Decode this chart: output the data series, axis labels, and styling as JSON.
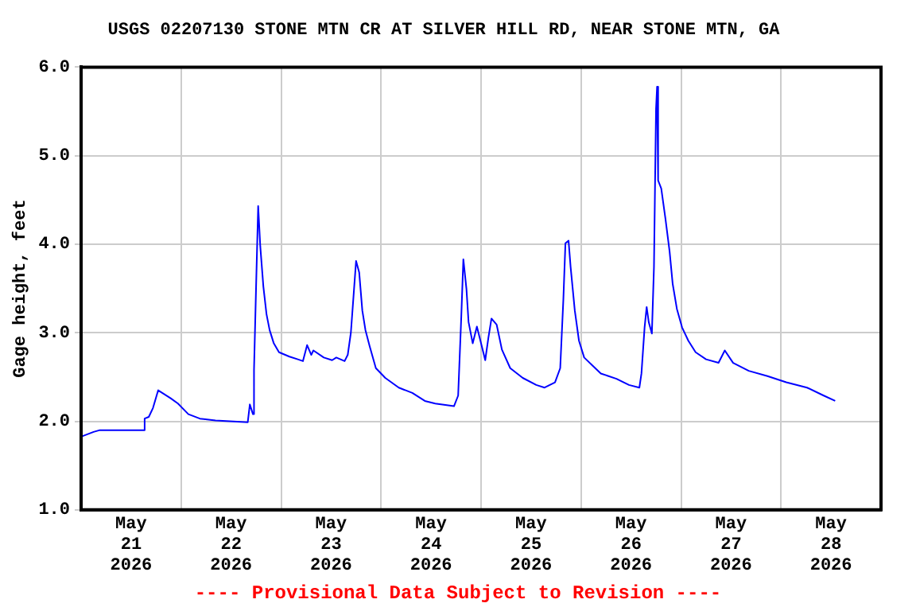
{
  "chart_data": {
    "type": "line",
    "title": "USGS 02207130 STONE MTN CR AT SILVER HILL RD, NEAR STONE MTN, GA",
    "ylabel": "Gage height, feet",
    "annotations": [
      "---- Provisional Data Subject to Revision ----"
    ],
    "x": [
      "2026-05-21T00:15",
      "2026-05-21T03:00",
      "2026-05-21T04:30",
      "2026-05-21T15:00",
      "2026-05-21T15:15",
      "2026-05-21T16:15",
      "2026-05-21T17:15",
      "2026-05-21T18:30",
      "2026-05-21T21:30",
      "2026-05-21T23:15",
      "2026-05-22T01:45",
      "2026-05-22T04:30",
      "2026-05-22T08:15",
      "2026-05-22T16:00",
      "2026-05-22T16:30",
      "2026-05-22T17:15",
      "2026-05-22T17:30",
      "2026-05-22T18:00",
      "2026-05-22T18:30",
      "2026-05-22T19:00",
      "2026-05-22T19:45",
      "2026-05-22T20:30",
      "2026-05-22T21:15",
      "2026-05-22T22:15",
      "2026-05-22T23:30",
      "2026-05-23T02:00",
      "2026-05-23T04:00",
      "2026-05-23T05:15",
      "2026-05-23T06:15",
      "2026-05-23T07:15",
      "2026-05-23T07:45",
      "2026-05-23T10:15",
      "2026-05-23T12:15",
      "2026-05-23T13:15",
      "2026-05-23T15:15",
      "2026-05-23T16:00",
      "2026-05-23T16:45",
      "2026-05-23T18:00",
      "2026-05-23T18:45",
      "2026-05-23T19:30",
      "2026-05-23T20:15",
      "2026-05-23T21:15",
      "2026-05-23T22:45",
      "2026-05-24T01:00",
      "2026-05-24T04:15",
      "2026-05-24T07:30",
      "2026-05-24T10:30",
      "2026-05-24T13:00",
      "2026-05-24T17:30",
      "2026-05-24T18:30",
      "2026-05-24T19:15",
      "2026-05-24T19:45",
      "2026-05-24T20:30",
      "2026-05-24T21:00",
      "2026-05-24T22:00",
      "2026-05-24T23:00",
      "2026-05-25T00:00",
      "2026-05-25T01:00",
      "2026-05-25T01:45",
      "2026-05-25T02:30",
      "2026-05-25T03:45",
      "2026-05-25T05:00",
      "2026-05-25T07:00",
      "2026-05-25T10:00",
      "2026-05-25T13:15",
      "2026-05-25T15:15",
      "2026-05-25T17:45",
      "2026-05-25T19:00",
      "2026-05-25T19:45",
      "2026-05-25T20:15",
      "2026-05-25T21:00",
      "2026-05-25T21:30",
      "2026-05-25T22:30",
      "2026-05-25T23:30",
      "2026-05-26T00:45",
      "2026-05-26T02:45",
      "2026-05-26T04:45",
      "2026-05-26T08:30",
      "2026-05-26T11:30",
      "2026-05-26T14:00",
      "2026-05-26T14:30",
      "2026-05-26T15:15",
      "2026-05-26T15:45",
      "2026-05-26T16:15",
      "2026-05-26T17:00",
      "2026-05-26T17:30",
      "2026-05-26T18:00",
      "2026-05-26T18:15",
      "2026-05-26T18:30",
      "2026-05-26T19:15",
      "2026-05-26T20:15",
      "2026-05-26T21:15",
      "2026-05-26T22:00",
      "2026-05-26T23:00",
      "2026-05-27T00:15",
      "2026-05-27T01:45",
      "2026-05-27T03:30",
      "2026-05-27T06:00",
      "2026-05-27T09:00",
      "2026-05-27T10:30",
      "2026-05-27T12:30",
      "2026-05-27T16:15",
      "2026-05-27T20:45",
      "2026-05-28T01:15",
      "2026-05-28T06:15",
      "2026-05-28T10:15",
      "2026-05-28T13:00"
    ],
    "series": [
      {
        "color": "#0000ff",
        "values": [
          1.83,
          1.88,
          1.9,
          1.9,
          2.03,
          2.05,
          2.15,
          2.35,
          2.26,
          2.2,
          2.08,
          2.03,
          2.01,
          1.99,
          2.19,
          2.08,
          2.58,
          3.52,
          4.43,
          3.98,
          3.52,
          3.21,
          3.03,
          2.88,
          2.78,
          2.73,
          2.7,
          2.68,
          2.86,
          2.75,
          2.8,
          2.72,
          2.69,
          2.72,
          2.68,
          2.75,
          3.0,
          3.81,
          3.68,
          3.25,
          3.03,
          2.85,
          2.6,
          2.49,
          2.38,
          2.32,
          2.23,
          2.2,
          2.17,
          2.29,
          3.18,
          3.83,
          3.49,
          3.12,
          2.88,
          3.07,
          2.88,
          2.69,
          2.94,
          3.16,
          3.09,
          2.81,
          2.6,
          2.49,
          2.41,
          2.38,
          2.44,
          2.6,
          3.37,
          4.01,
          4.04,
          3.74,
          3.25,
          2.91,
          2.72,
          2.63,
          2.54,
          2.48,
          2.41,
          2.38,
          2.54,
          3.06,
          3.29,
          3.12,
          2.99,
          3.74,
          5.53,
          5.78,
          4.72,
          4.63,
          4.29,
          3.92,
          3.55,
          3.27,
          3.06,
          2.91,
          2.78,
          2.7,
          2.66,
          2.8,
          2.66,
          2.57,
          2.51,
          2.44,
          2.38,
          2.29,
          2.23
        ]
      }
    ],
    "xlim": [
      "2026-05-21T00:00",
      "2026-05-29T00:00"
    ],
    "xticks": [
      {
        "value": "2026-05-21T12:00",
        "label": "May 21 2026"
      },
      {
        "value": "2026-05-22T00:00",
        "label": null
      },
      {
        "value": "2026-05-22T12:00",
        "label": "May 22 2026"
      },
      {
        "value": "2026-05-23T00:00",
        "label": null
      },
      {
        "value": "2026-05-23T12:00",
        "label": "May 23 2026"
      },
      {
        "value": "2026-05-24T00:00",
        "label": null
      },
      {
        "value": "2026-05-24T12:00",
        "label": "May 24 2026"
      },
      {
        "value": "2026-05-25T00:00",
        "label": null
      },
      {
        "value": "2026-05-25T12:00",
        "label": "May 25 2026"
      },
      {
        "value": "2026-05-26T00:00",
        "label": null
      },
      {
        "value": "2026-05-26T12:00",
        "label": "May 26 2026"
      },
      {
        "value": "2026-05-27T00:00",
        "label": null
      },
      {
        "value": "2026-05-27T12:00",
        "label": "May 27 2026"
      },
      {
        "value": "2026-05-28T00:00",
        "label": null
      },
      {
        "value": "2026-05-28T12:00",
        "label": "May 28 2026"
      }
    ],
    "ylim": [
      1,
      6
    ],
    "yticks": [
      {
        "value": 1,
        "label": "1.0"
      },
      {
        "value": 2,
        "label": "2.0"
      },
      {
        "value": 3,
        "label": "3.0"
      },
      {
        "value": 4,
        "label": "4.0"
      },
      {
        "value": 5,
        "label": "5.0"
      },
      {
        "value": 6,
        "label": "6.0"
      }
    ],
    "grid": true,
    "legend": false,
    "marker": "none",
    "line_style": "solid"
  }
}
